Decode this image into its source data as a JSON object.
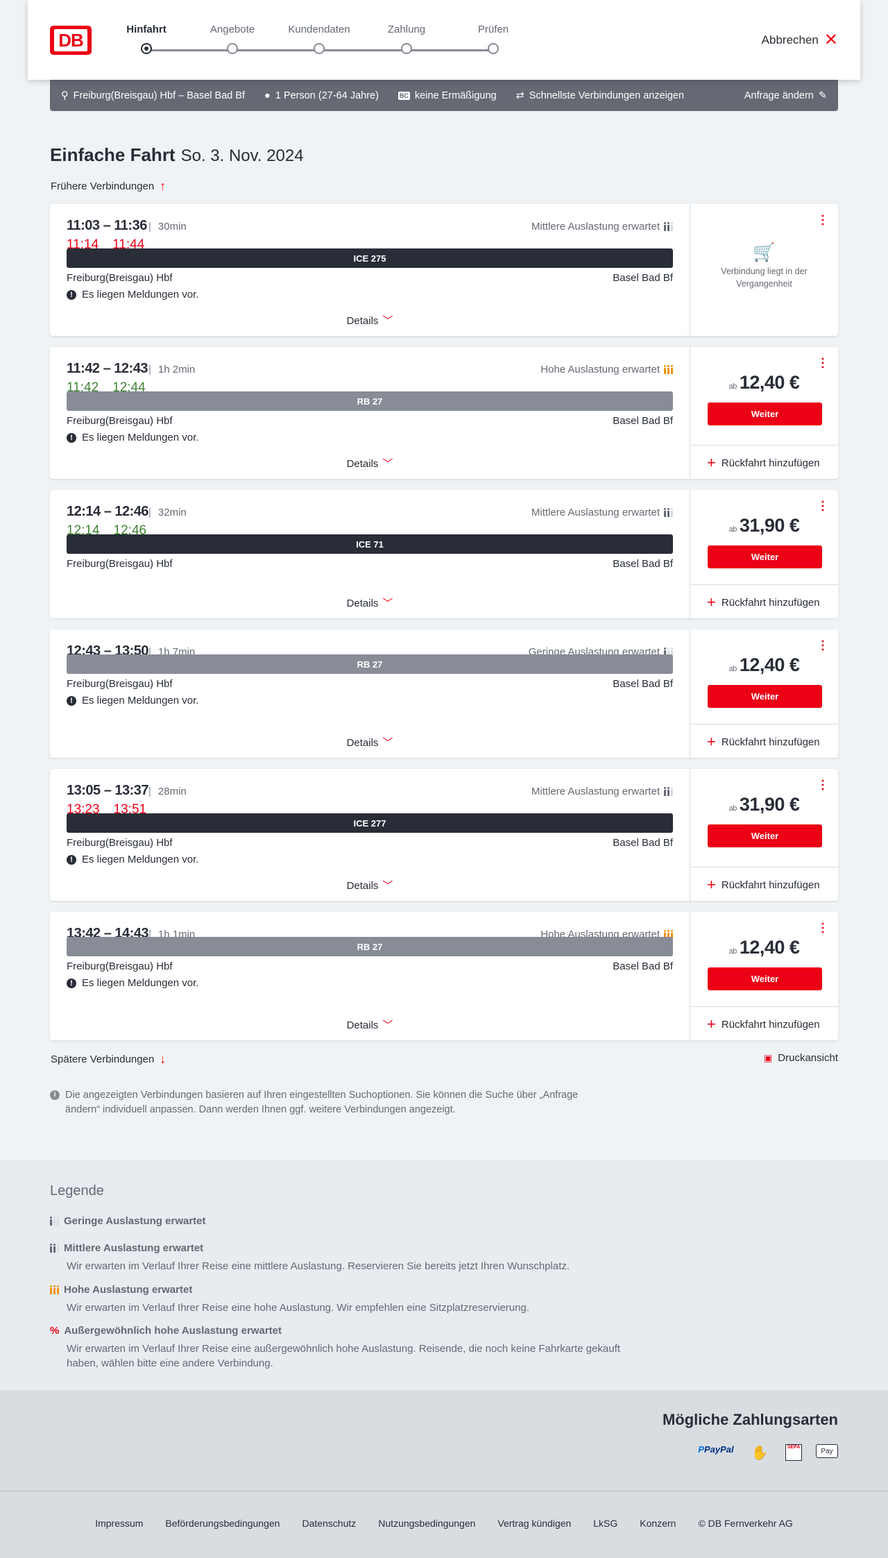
{
  "colors": {
    "brand": "#ec0016",
    "dark_bar": "#282d37",
    "regional_bar": "#878c96",
    "delay_red": "#ec0016",
    "on_time_green": "#408335",
    "high_occ": "#f39200"
  },
  "header": {
    "logo": "DB",
    "steps": [
      {
        "label": "Hinfahrt",
        "active": true
      },
      {
        "label": "Angebote"
      },
      {
        "label": "Kundendaten"
      },
      {
        "label": "Zahlung"
      },
      {
        "label": "Prüfen"
      }
    ],
    "cancel": "Abbrechen"
  },
  "infobar": {
    "route": "Freiburg(Breisgau) Hbf – Basel Bad Bf",
    "persons": "1 Person (27-64 Jahre)",
    "discount_badge": "BC",
    "discount": "keine Ermäßigung",
    "fastest": "Schnellste Verbindungen anzeigen",
    "edit": "Anfrage ändern"
  },
  "title": {
    "main": "Einfache Fahrt",
    "date": "So. 3. Nov. 2024"
  },
  "earlier": "Frühere Verbindungen",
  "later": "Spätere Verbindungen",
  "print": "Druckansicht",
  "labels": {
    "details": "Details",
    "weiter": "Weiter",
    "ab": "ab",
    "return": "Rückfahrt hinzufügen",
    "messages": "Es liegen Meldungen vor.",
    "past": "Verbindung liegt in der Vergangenheit"
  },
  "connections": [
    {
      "times": "11:03 – 11:36",
      "duration": "30min",
      "occupancy": "Mittlere Auslastung erwartet",
      "occ_level": 2,
      "rt": [
        "11:14",
        "11:44"
      ],
      "rt_status": "delayed",
      "train": "ICE 275",
      "train_type": "long",
      "from": "Freiburg(Breisgau) Hbf",
      "to": "Basel Bad Bf",
      "messages": true,
      "past": true
    },
    {
      "times": "11:42 – 12:43",
      "duration": "1h 2min",
      "occupancy": "Hohe Auslastung erwartet",
      "occ_level": 3,
      "rt": [
        "11:42",
        "12:44"
      ],
      "rt_status": "ontime",
      "train": "RB 27",
      "train_type": "regional",
      "from": "Freiburg(Breisgau) Hbf",
      "to": "Basel Bad Bf",
      "messages": true,
      "price": "12,40 €"
    },
    {
      "times": "12:14 – 12:46",
      "duration": "32min",
      "occupancy": "Mittlere Auslastung erwartet",
      "occ_level": 2,
      "rt": [
        "12:14",
        "12:46"
      ],
      "rt_status": "ontime",
      "train": "ICE 71",
      "train_type": "long",
      "from": "Freiburg(Breisgau) Hbf",
      "to": "Basel Bad Bf",
      "messages": false,
      "price": "31,90 €"
    },
    {
      "times": "12:43 – 13:50",
      "duration": "1h 7min",
      "occupancy": "Geringe Auslastung erwartet",
      "occ_level": 1,
      "train": "RB 27",
      "train_type": "regional",
      "from": "Freiburg(Breisgau) Hbf",
      "to": "Basel Bad Bf",
      "messages": true,
      "price": "12,40 €"
    },
    {
      "times": "13:05 – 13:37",
      "duration": "28min",
      "occupancy": "Mittlere Auslastung erwartet",
      "occ_level": 2,
      "rt": [
        "13:23",
        "13:51"
      ],
      "rt_status": "delayed",
      "train": "ICE 277",
      "train_type": "long",
      "from": "Freiburg(Breisgau) Hbf",
      "to": "Basel Bad Bf",
      "messages": true,
      "price": "31,90 €"
    },
    {
      "times": "13:42 – 14:43",
      "duration": "1h 1min",
      "occupancy": "Hohe Auslastung erwartet",
      "occ_level": 3,
      "train": "RB 27",
      "train_type": "regional",
      "from": "Freiburg(Breisgau) Hbf",
      "to": "Basel Bad Bf",
      "messages": true,
      "price": "12,40 €"
    }
  ],
  "note": "Die angezeigten Verbindungen basieren auf Ihren eingestellten Suchoptionen. Sie können die Suche über „Anfrage ändern“ individuell anpassen. Dann werden Ihnen ggf. weitere Verbindungen angezeigt.",
  "legend": {
    "title": "Legende",
    "items": [
      {
        "title": "Geringe Auslastung erwartet",
        "text": ""
      },
      {
        "title": "Mittlere Auslastung erwartet",
        "text": "Wir erwarten im Verlauf Ihrer Reise eine mittlere Auslastung. Reservieren Sie bereits jetzt Ihren Wunschplatz."
      },
      {
        "title": "Hohe Auslastung erwartet",
        "text": "Wir erwarten im Verlauf Ihrer Reise eine hohe Auslastung. Wir empfehlen eine Sitzplatzreservierung."
      },
      {
        "title": "Außergewöhnlich hohe Auslastung erwartet",
        "text": "Wir erwarten im Verlauf Ihrer Reise eine außergewöhnlich hohe Auslastung. Reisende, die noch keine Fahrkarte gekauft haben, wählen bitte eine andere Verbindung."
      }
    ]
  },
  "payment": {
    "title": "Mögliche Zahlungsarten",
    "methods": [
      "PayPal",
      "SEPA",
      "Pay"
    ]
  },
  "footer": [
    "Impressum",
    "Beförderungsbedingungen",
    "Datenschutz",
    "Nutzungsbedingungen",
    "Vertrag kündigen",
    "LkSG",
    "Konzern",
    "© DB Fernverkehr AG"
  ]
}
